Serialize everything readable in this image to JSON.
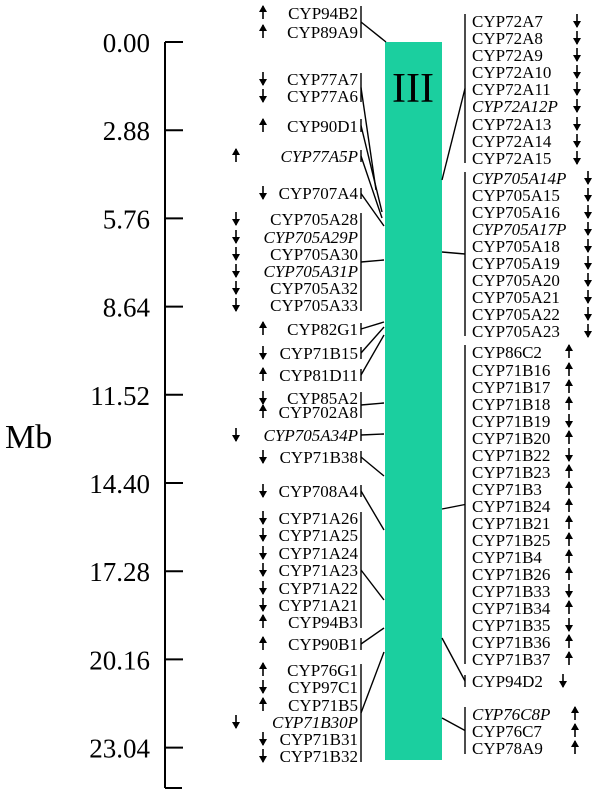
{
  "colors": {
    "chromosome": "#1bcf9f",
    "ink": "#000000"
  },
  "chromosome_label": "III",
  "axis": {
    "label": "Mb",
    "ticks": [
      "0.00",
      "2.88",
      "5.76",
      "8.64",
      "11.52",
      "14.40",
      "17.28",
      "20.16",
      "23.04"
    ]
  },
  "left_genes": [
    {
      "name": "CYP94B2",
      "dir": "up",
      "italic": false
    },
    {
      "name": "CYP89A9",
      "dir": "up",
      "italic": false
    },
    {
      "name": "CYP77A7",
      "dir": "down",
      "italic": false
    },
    {
      "name": "CYP77A6",
      "dir": "down",
      "italic": false
    },
    {
      "name": "CYP90D1",
      "dir": "up",
      "italic": false
    },
    {
      "name": "CYP77A5P",
      "dir": "up",
      "italic": true
    },
    {
      "name": "CYP707A4",
      "dir": "down",
      "italic": false
    },
    {
      "name": "CYP705A28",
      "dir": "down",
      "italic": false
    },
    {
      "name": "CYP705A29P",
      "dir": "down",
      "italic": true
    },
    {
      "name": "CYP705A30",
      "dir": "down",
      "italic": false
    },
    {
      "name": "CYP705A31P",
      "dir": "down",
      "italic": true
    },
    {
      "name": "CYP705A32",
      "dir": "down",
      "italic": false
    },
    {
      "name": "CYP705A33",
      "dir": "down",
      "italic": false
    },
    {
      "name": "CYP82G1",
      "dir": "up",
      "italic": false
    },
    {
      "name": "CYP71B15",
      "dir": "down",
      "italic": false
    },
    {
      "name": "CYP81D11",
      "dir": "up",
      "italic": false
    },
    {
      "name": "CYP85A2",
      "dir": "down",
      "italic": false
    },
    {
      "name": "CYP702A8",
      "dir": "up",
      "italic": false
    },
    {
      "name": "CYP705A34P",
      "dir": "down",
      "italic": true
    },
    {
      "name": "CYP71B38",
      "dir": "down",
      "italic": false
    },
    {
      "name": "CYP708A4",
      "dir": "down",
      "italic": false
    },
    {
      "name": "CYP71A26",
      "dir": "down",
      "italic": false
    },
    {
      "name": "CYP71A25",
      "dir": "down",
      "italic": false
    },
    {
      "name": "CYP71A24",
      "dir": "down",
      "italic": false
    },
    {
      "name": "CYP71A23",
      "dir": "down",
      "italic": false
    },
    {
      "name": "CYP71A22",
      "dir": "down",
      "italic": false
    },
    {
      "name": "CYP71A21",
      "dir": "down",
      "italic": false
    },
    {
      "name": "CYP94B3",
      "dir": "up",
      "italic": false
    },
    {
      "name": "CYP90B1",
      "dir": "up",
      "italic": false
    },
    {
      "name": "CYP76G1",
      "dir": "up",
      "italic": false
    },
    {
      "name": "CYP97C1",
      "dir": "down",
      "italic": false
    },
    {
      "name": "CYP71B5",
      "dir": "up",
      "italic": false
    },
    {
      "name": "CYP71B30P",
      "dir": "down",
      "italic": true
    },
    {
      "name": "CYP71B31",
      "dir": "down",
      "italic": false
    },
    {
      "name": "CYP71B32",
      "dir": "down",
      "italic": false
    }
  ],
  "right_genes": [
    {
      "name": "CYP72A7",
      "dir": "down",
      "italic": false
    },
    {
      "name": "CYP72A8",
      "dir": "down",
      "italic": false
    },
    {
      "name": "CYP72A9",
      "dir": "down",
      "italic": false
    },
    {
      "name": "CYP72A10",
      "dir": "down",
      "italic": false
    },
    {
      "name": "CYP72A11",
      "dir": "down",
      "italic": false
    },
    {
      "name": "CYP72A12P",
      "dir": "down",
      "italic": true
    },
    {
      "name": "CYP72A13",
      "dir": "down",
      "italic": false
    },
    {
      "name": "CYP72A14",
      "dir": "down",
      "italic": false
    },
    {
      "name": "CYP72A15",
      "dir": "down",
      "italic": false
    },
    {
      "name": "CYP705A14P",
      "dir": "down",
      "italic": true
    },
    {
      "name": "CYP705A15",
      "dir": "down",
      "italic": false
    },
    {
      "name": "CYP705A16",
      "dir": "down",
      "italic": false
    },
    {
      "name": "CYP705A17P",
      "dir": "down",
      "italic": true
    },
    {
      "name": "CYP705A18",
      "dir": "down",
      "italic": false
    },
    {
      "name": "CYP705A19",
      "dir": "down",
      "italic": false
    },
    {
      "name": "CYP705A20",
      "dir": "down",
      "italic": false
    },
    {
      "name": "CYP705A21",
      "dir": "down",
      "italic": false
    },
    {
      "name": "CYP705A22",
      "dir": "down",
      "italic": false
    },
    {
      "name": "CYP705A23",
      "dir": "down",
      "italic": false
    },
    {
      "name": "CYP86C2",
      "dir": "up",
      "italic": false
    },
    {
      "name": "CYP71B16",
      "dir": "up",
      "italic": false
    },
    {
      "name": "CYP71B17",
      "dir": "up",
      "italic": false
    },
    {
      "name": "CYP71B18",
      "dir": "up",
      "italic": false
    },
    {
      "name": "CYP71B19",
      "dir": "down",
      "italic": false
    },
    {
      "name": "CYP71B20",
      "dir": "up",
      "italic": false
    },
    {
      "name": "CYP71B22",
      "dir": "down",
      "italic": false
    },
    {
      "name": "CYP71B23",
      "dir": "up",
      "italic": false
    },
    {
      "name": "CYP71B3",
      "dir": "up",
      "italic": false
    },
    {
      "name": "CYP71B24",
      "dir": "up",
      "italic": false
    },
    {
      "name": "CYP71B21",
      "dir": "up",
      "italic": false
    },
    {
      "name": "CYP71B25",
      "dir": "up",
      "italic": false
    },
    {
      "name": "CYP71B4",
      "dir": "up",
      "italic": false
    },
    {
      "name": "CYP71B26",
      "dir": "up",
      "italic": false
    },
    {
      "name": "CYP71B33",
      "dir": "down",
      "italic": false
    },
    {
      "name": "CYP71B34",
      "dir": "up",
      "italic": false
    },
    {
      "name": "CYP71B35",
      "dir": "down",
      "italic": false
    },
    {
      "name": "CYP71B36",
      "dir": "up",
      "italic": false
    },
    {
      "name": "CYP71B37",
      "dir": "up",
      "italic": false
    },
    {
      "name": "CYP94D2",
      "dir": "down",
      "italic": false
    },
    {
      "name": "CYP76C8P",
      "dir": "up",
      "italic": true
    },
    {
      "name": "CYP76C7",
      "dir": "up",
      "italic": false
    },
    {
      "name": "CYP78A9",
      "dir": "up",
      "italic": false
    }
  ]
}
